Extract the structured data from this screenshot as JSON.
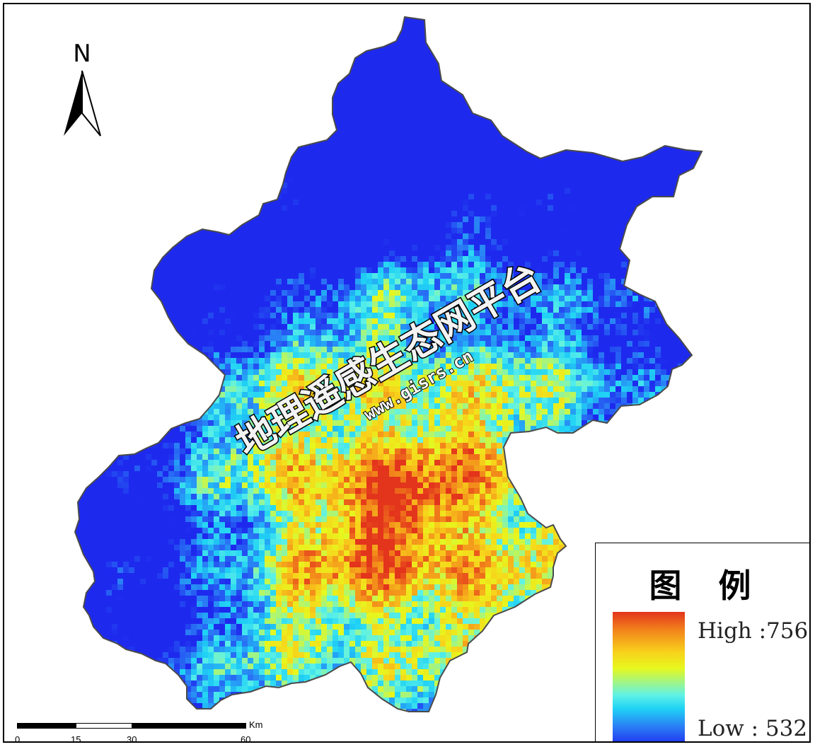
{
  "map": {
    "north_label": "N",
    "legend": {
      "title": "图 例",
      "high_label": "High :756",
      "low_label": "Low : 532",
      "ramp_colors": [
        "#e3341c",
        "#f2861b",
        "#f8d21b",
        "#e6f81e",
        "#5ff2e6",
        "#1fd2f5",
        "#2a7af5",
        "#1e29ee"
      ]
    },
    "scale_bar": {
      "unit": "Km",
      "ticks": [
        "0",
        "15",
        "30",
        "60"
      ]
    },
    "watermark": {
      "text": "地理遥感生态网平台",
      "url": "www.gisrs.cn"
    },
    "colors": {
      "boundary": "#4a4a4a",
      "high": "#e3341c",
      "low": "#1e29ee"
    }
  }
}
